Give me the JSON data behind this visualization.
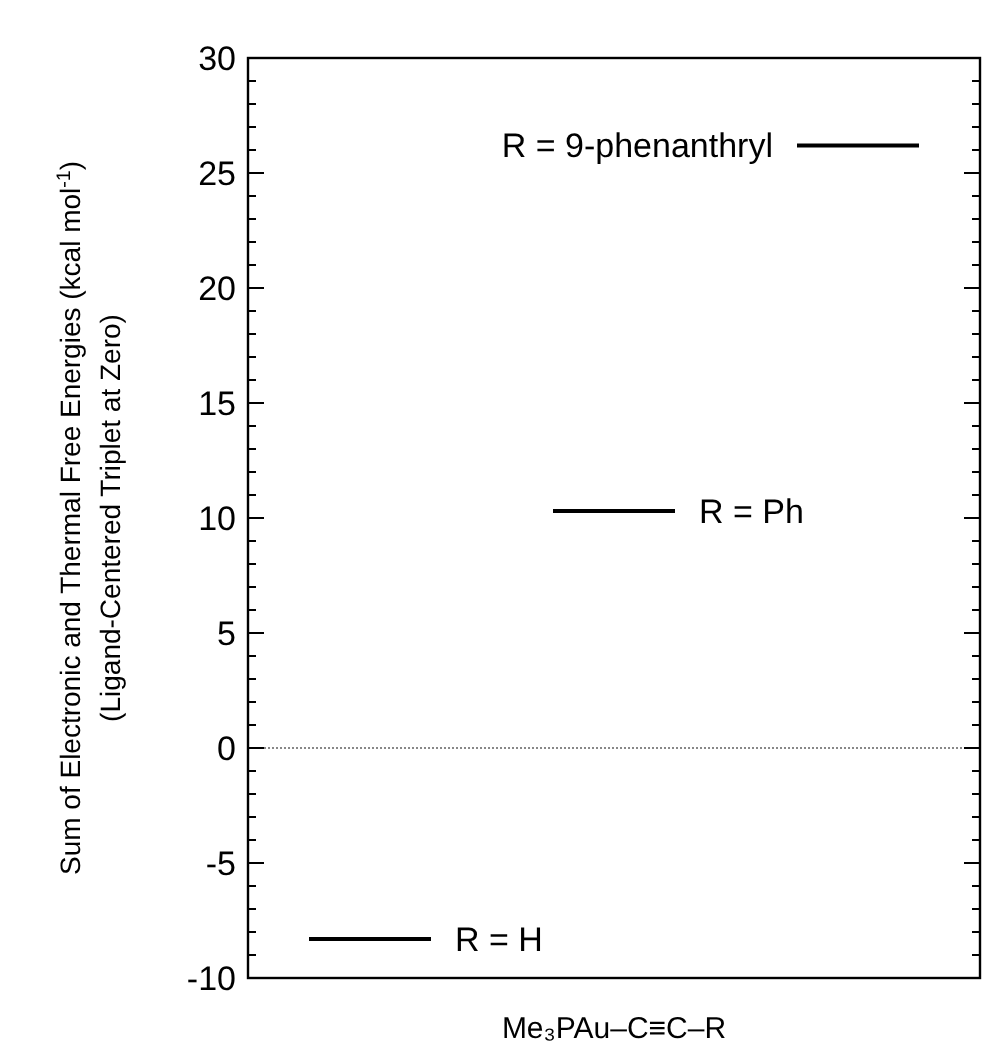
{
  "chart_data": {
    "type": "line",
    "xlabel": "Me₃PAu–C≡C–R",
    "ylabel": "Sum of Electronic and Thermal Free Energies (kcal mol$^{-1}$)\n(Ligand-Centered Triplet at Zero)",
    "categories": [
      null,
      null,
      null,
      null,
      null,
      null
    ],
    "series": [
      {
        "color": "#000000",
        "values": [
          -8.3,
          -8.3,
          null,
          null,
          null,
          null
        ]
      },
      {
        "color": "#000000",
        "values": [
          null,
          null,
          10.3,
          10.3,
          null,
          null
        ]
      },
      {
        "color": "#000000",
        "values": [
          null,
          null,
          null,
          null,
          26.2,
          26.2
        ]
      }
    ],
    "ylim": [
      -10,
      30
    ],
    "yticks": [
      -10,
      -5,
      0,
      5,
      10,
      15,
      20,
      25,
      30
    ],
    "grid": false,
    "ref_lines": [
      {
        "axis": "y",
        "value": 0,
        "color": "#888888",
        "line_style": "dotted"
      }
    ],
    "annotations": [
      "R = H",
      "R = Ph",
      "R = 9-phenanthryl"
    ]
  }
}
